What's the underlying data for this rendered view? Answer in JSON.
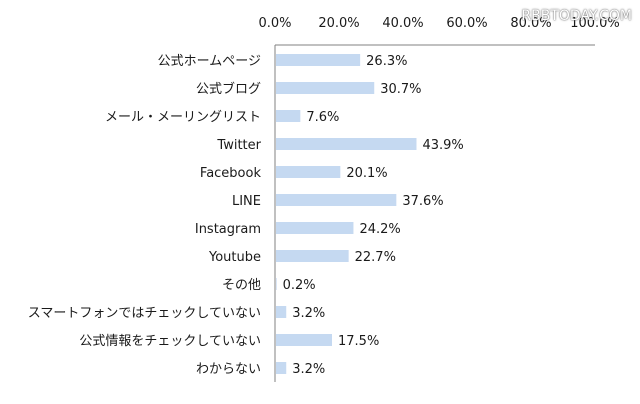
{
  "watermark": "RBBTODAY.COM",
  "colors": {
    "bar": "#c5d9f1",
    "axis": "#808080",
    "text": "#1a1a1a"
  },
  "chart_data": {
    "type": "bar",
    "orientation": "horizontal",
    "title": "",
    "xlabel": "",
    "ylabel": "",
    "xlim": [
      0,
      100
    ],
    "ticks": [
      0,
      20,
      40,
      60,
      80,
      100
    ],
    "tick_labels": [
      "0.0%",
      "20.0%",
      "40.0%",
      "60.0%",
      "80.0%",
      "100.0%"
    ],
    "tick_position": "top",
    "grid": false,
    "categories": [
      "公式ホームページ",
      "公式ブログ",
      "メール・メーリングリスト",
      "Twitter",
      "Facebook",
      "LINE",
      "Instagram",
      "Youtube",
      "その他",
      "スマートフォンではチェックしていない",
      "公式情報をチェックしていない",
      "わからない"
    ],
    "values": [
      26.3,
      30.7,
      7.6,
      43.9,
      20.1,
      37.6,
      24.2,
      22.7,
      0.2,
      3.2,
      17.5,
      3.2
    ],
    "value_labels": [
      "26.3%",
      "30.7%",
      "7.6%",
      "43.9%",
      "20.1%",
      "37.6%",
      "24.2%",
      "22.7%",
      "0.2%",
      "3.2%",
      "17.5%",
      "3.2%"
    ]
  }
}
